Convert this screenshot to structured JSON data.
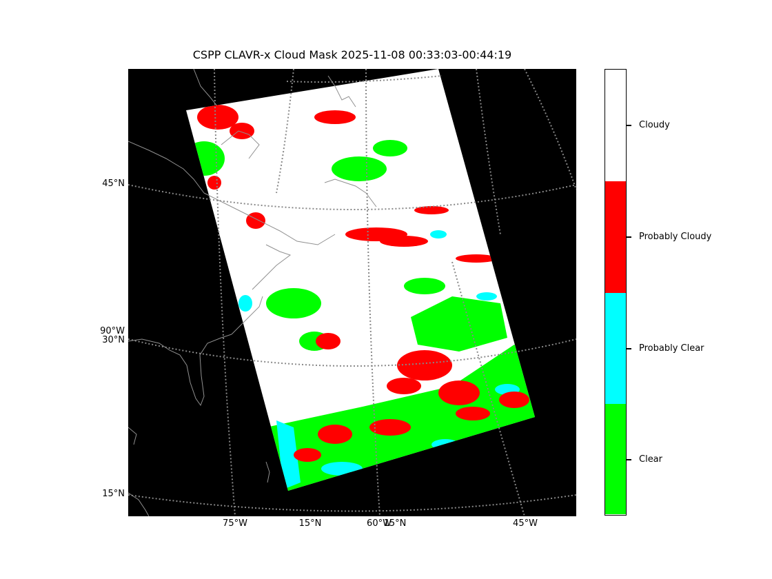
{
  "title": "CSPP CLAVR-x Cloud Mask 2025-11-08 00:33:03-00:44:19",
  "map": {
    "background": "#000000",
    "grid_color": "#888888",
    "coast_color": "#909090",
    "lat_labels": [
      "45°N",
      "90°W",
      "30°N",
      "15°N"
    ],
    "lon_labels": [
      "75°W",
      "15°N",
      "60°W",
      "15°N",
      "45°W"
    ]
  },
  "colorbar": {
    "categories": [
      {
        "label": "Cloudy",
        "color": "#ffffff"
      },
      {
        "label": "Probably Cloudy",
        "color": "#ff0000"
      },
      {
        "label": "Probably Clear",
        "color": "#00ffff"
      },
      {
        "label": "Clear",
        "color": "#00ff00"
      }
    ]
  }
}
